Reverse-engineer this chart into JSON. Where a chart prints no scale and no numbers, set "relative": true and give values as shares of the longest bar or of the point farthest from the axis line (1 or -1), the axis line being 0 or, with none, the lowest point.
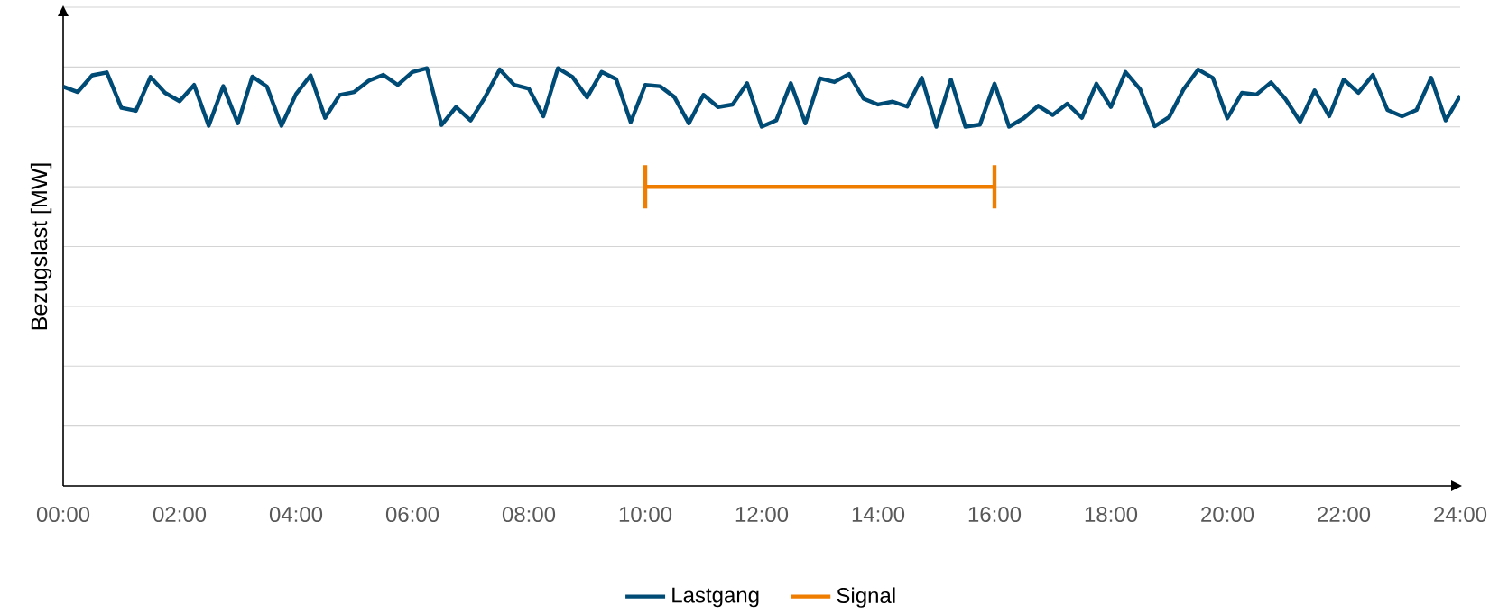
{
  "chart_data": {
    "type": "line",
    "ylabel": "Bezugslast [MW]",
    "relative": true,
    "grid": "y",
    "legend": "bottom",
    "xlim": [
      0,
      24
    ],
    "xticks": [
      {
        "value": 0,
        "label": "00:00"
      },
      {
        "value": 2,
        "label": "02:00"
      },
      {
        "value": 4,
        "label": "04:00"
      },
      {
        "value": 6,
        "label": "06:00"
      },
      {
        "value": 8,
        "label": "08:00"
      },
      {
        "value": 10,
        "label": "10:00"
      },
      {
        "value": 12,
        "label": "12:00"
      },
      {
        "value": 14,
        "label": "14:00"
      },
      {
        "value": 16,
        "label": "16:00"
      },
      {
        "value": 18,
        "label": "18:00"
      },
      {
        "value": 20,
        "label": "20:00"
      },
      {
        "value": 22,
        "label": "22:00"
      },
      {
        "value": 24,
        "label": "24:00"
      }
    ],
    "x": [
      0,
      0.25,
      0.5,
      0.75,
      1,
      1.25,
      1.5,
      1.75,
      2,
      2.25,
      2.5,
      2.75,
      3,
      3.25,
      3.5,
      3.75,
      4,
      4.25,
      4.5,
      4.75,
      5,
      5.25,
      5.5,
      5.75,
      6,
      6.25,
      6.5,
      6.75,
      7,
      7.25,
      7.5,
      7.75,
      8,
      8.25,
      8.5,
      8.75,
      9,
      9.25,
      9.5,
      9.75,
      10,
      10.25,
      10.5,
      10.75,
      11,
      11.25,
      11.5,
      11.75,
      12,
      12.25,
      12.5,
      12.75,
      13,
      13.25,
      13.5,
      13.75,
      14,
      14.25,
      14.5,
      14.75,
      15,
      15.25,
      15.5,
      15.75,
      16,
      16.25,
      16.5,
      16.75,
      17,
      17.25,
      17.5,
      17.75,
      18,
      18.25,
      18.5,
      18.75,
      19,
      19.25,
      19.5,
      19.75,
      20,
      20.25,
      20.5,
      20.75,
      21,
      21.25,
      21.5,
      21.75,
      22,
      22.25,
      22.5,
      22.75,
      23,
      23.25,
      23.5,
      23.75,
      24
    ],
    "series": [
      {
        "name": "Lastgang",
        "color": "#004b76",
        "marker": "none",
        "values": [
          0.956,
          0.943,
          0.983,
          0.99,
          0.905,
          0.898,
          0.979,
          0.941,
          0.921,
          0.96,
          0.862,
          0.957,
          0.868,
          0.98,
          0.956,
          0.862,
          0.938,
          0.983,
          0.881,
          0.936,
          0.943,
          0.97,
          0.984,
          0.96,
          0.991,
          1,
          0.864,
          0.907,
          0.875,
          0.931,
          0.997,
          0.96,
          0.951,
          0.885,
          1,
          0.979,
          0.93,
          0.991,
          0.974,
          0.871,
          0.96,
          0.957,
          0.931,
          0.868,
          0.936,
          0.907,
          0.913,
          0.964,
          0.86,
          0.875,
          0.964,
          0.868,
          0.976,
          0.967,
          0.986,
          0.927,
          0.913,
          0.92,
          0.908,
          0.977,
          0.86,
          0.973,
          0.86,
          0.865,
          0.963,
          0.86,
          0.88,
          0.91,
          0.888,
          0.915,
          0.881,
          0.963,
          0.907,
          0.991,
          0.95,
          0.861,
          0.883,
          0.95,
          0.997,
          0.977,
          0.88,
          0.941,
          0.937,
          0.966,
          0.926,
          0.872,
          0.947,
          0.885,
          0.973,
          0.941,
          0.984,
          0.9,
          0.885,
          0.9,
          0.977,
          0.875,
          0.934
        ]
      },
      {
        "name": "Signal",
        "color": "#ef7d00",
        "marker": "none",
        "x": [
          10,
          16
        ],
        "values": [
          0.716,
          0.716
        ]
      }
    ]
  }
}
